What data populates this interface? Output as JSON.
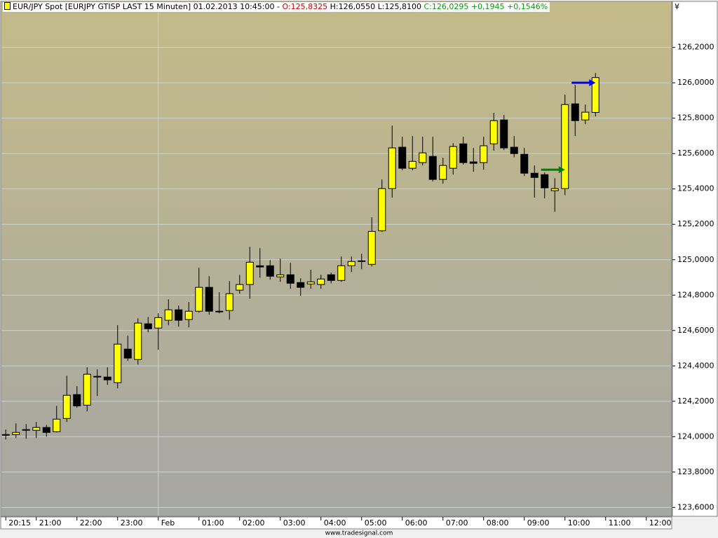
{
  "chart_data": {
    "type": "candlestick",
    "header": {
      "title": "EUR/JPY Spot [EURJPY GTISP LAST 15 Minuten] 01.02.2013 10:45:00 -",
      "open": "O:125,8325",
      "high": "H:126,0550",
      "low": "L:125,8100",
      "close": "C:126,0295 +0,1945 +0,1546%"
    },
    "currency": "¥",
    "footer": "www.tradesignal.com",
    "categories": [
      "20:15",
      null,
      null,
      "21:00",
      null,
      null,
      null,
      "22:00",
      null,
      null,
      null,
      "23:00",
      null,
      null,
      null,
      "Feb",
      null,
      null,
      null,
      "01:00",
      null,
      null,
      null,
      "02:00",
      null,
      null,
      null,
      "03:00",
      null,
      null,
      null,
      "04:00",
      null,
      null,
      null,
      "05:00",
      null,
      null,
      null,
      "06:00",
      null,
      null,
      null,
      "07:00",
      null,
      null,
      null,
      "08:00",
      null,
      null,
      null,
      "09:00",
      null,
      null,
      null,
      "10:00",
      null,
      null,
      null,
      "11:00",
      null,
      null,
      null,
      "12:00",
      null
    ],
    "open": [
      124.012,
      124.012,
      124.04,
      124.036,
      124.052,
      124.028,
      124.103,
      124.238,
      124.178,
      124.341,
      124.337,
      124.305,
      124.495,
      124.436,
      124.638,
      124.614,
      124.658,
      124.717,
      124.662,
      124.709,
      124.844,
      124.709,
      124.713,
      124.828,
      124.86,
      124.966,
      124.966,
      124.903,
      124.915,
      124.871,
      124.863,
      124.86,
      124.915,
      124.883,
      124.966,
      124.994,
      124.974,
      125.164,
      125.402,
      125.636,
      125.517,
      125.549,
      125.584,
      125.454,
      125.517,
      125.655,
      125.553,
      125.549,
      125.655,
      125.79,
      125.636,
      125.596,
      125.489,
      125.481,
      125.39,
      125.402,
      125.881,
      125.79,
      125.8325,
      null,
      null,
      null,
      null,
      null,
      null
    ],
    "high": [
      124.04,
      124.075,
      124.071,
      124.083,
      124.067,
      124.174,
      124.345,
      124.285,
      124.392,
      124.38,
      124.392,
      124.63,
      124.57,
      124.669,
      124.677,
      124.697,
      124.776,
      124.741,
      124.761,
      124.955,
      124.907,
      124.816,
      124.879,
      124.915,
      125.073,
      125.065,
      124.998,
      125.006,
      124.982,
      124.895,
      124.943,
      124.915,
      124.927,
      125.018,
      125.018,
      125.034,
      125.24,
      125.454,
      125.758,
      125.695,
      125.699,
      125.695,
      125.695,
      125.576,
      125.659,
      125.695,
      125.632,
      125.695,
      125.83,
      125.818,
      125.699,
      125.632,
      125.533,
      125.493,
      125.461,
      125.933,
      125.988,
      125.877,
      126.055,
      null,
      null,
      null,
      null,
      null,
      null
    ],
    "low": [
      123.984,
      123.992,
      123.988,
      123.992,
      124.0,
      124.024,
      124.083,
      124.163,
      124.143,
      124.23,
      124.293,
      124.273,
      124.428,
      124.408,
      124.59,
      124.491,
      124.63,
      124.622,
      124.618,
      124.701,
      124.689,
      124.697,
      124.662,
      124.808,
      124.78,
      124.899,
      124.887,
      124.875,
      124.836,
      124.796,
      124.836,
      124.836,
      124.867,
      124.875,
      124.931,
      124.947,
      124.962,
      125.157,
      125.351,
      125.505,
      125.505,
      125.533,
      125.442,
      125.43,
      125.481,
      125.537,
      125.497,
      125.509,
      125.616,
      125.62,
      125.58,
      125.473,
      125.351,
      125.347,
      125.271,
      125.366,
      125.699,
      125.766,
      125.81,
      null,
      null,
      null,
      null,
      null,
      null
    ],
    "close": [
      124.012,
      124.024,
      124.04,
      124.052,
      124.024,
      124.099,
      124.234,
      124.174,
      124.353,
      124.341,
      124.321,
      124.523,
      124.444,
      124.642,
      124.61,
      124.673,
      124.717,
      124.658,
      124.709,
      124.844,
      124.709,
      124.709,
      124.808,
      124.86,
      124.986,
      124.959,
      124.907,
      124.915,
      124.867,
      124.844,
      124.875,
      124.891,
      124.883,
      124.966,
      124.99,
      124.994,
      125.16,
      125.402,
      125.632,
      125.517,
      125.556,
      125.604,
      125.454,
      125.533,
      125.64,
      125.549,
      125.545,
      125.644,
      125.786,
      125.632,
      125.6,
      125.489,
      125.465,
      125.406,
      125.402,
      125.877,
      125.786,
      125.834,
      126.0295,
      null,
      null,
      null,
      null,
      null,
      null
    ],
    "up_color": "#ffff00",
    "down_color": "#000000",
    "arrows": [
      {
        "candle": 58,
        "value": 126.0,
        "color": "#0000ff"
      },
      {
        "candle": 55,
        "value": 125.509,
        "color": "#008000"
      }
    ],
    "ylim": [
      123.55,
      126.46
    ],
    "yticks": [
      {
        "value": 123.6,
        "label": "123,6000"
      },
      {
        "value": 123.8,
        "label": "123,8000"
      },
      {
        "value": 124.0,
        "label": "124,0000"
      },
      {
        "value": 124.2,
        "label": "124,2000"
      },
      {
        "value": 124.4,
        "label": "124,4000"
      },
      {
        "value": 124.6,
        "label": "124,6000"
      },
      {
        "value": 124.8,
        "label": "124,8000"
      },
      {
        "value": 125.0,
        "label": "125,0000"
      },
      {
        "value": 125.2,
        "label": "125,2000"
      },
      {
        "value": 125.4,
        "label": "125,4000"
      },
      {
        "value": 125.6,
        "label": "125,6000"
      },
      {
        "value": 125.8,
        "label": "125,8000"
      },
      {
        "value": 126.0,
        "label": "126,0000"
      },
      {
        "value": 126.2,
        "label": "126,2000"
      }
    ],
    "grid": true
  }
}
